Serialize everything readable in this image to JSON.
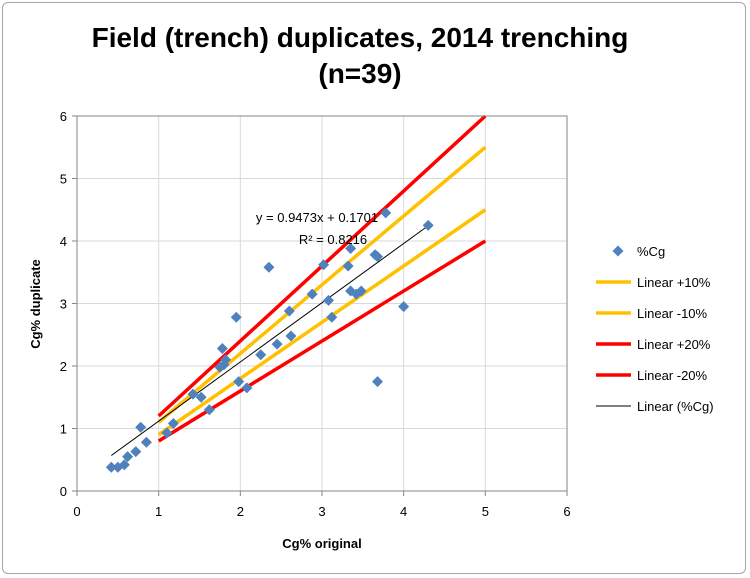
{
  "chart_data": {
    "type": "scatter",
    "title": "Field (trench) duplicates, 2014 trenching",
    "subtitle": "(n=39)",
    "xlabel": "Cg% original",
    "ylabel": "Cg% duplicate",
    "xlim": [
      0,
      6
    ],
    "ylim": [
      0,
      6
    ],
    "xticks": [
      "0",
      "1",
      "2",
      "3",
      "4",
      "5",
      "6"
    ],
    "yticks": [
      "0",
      "1",
      "2",
      "3",
      "4",
      "5",
      "6"
    ],
    "grid": true,
    "legend_position": "right",
    "series": [
      {
        "name": "%Cg",
        "color": "#4f81bd",
        "marker": "diamond",
        "points": [
          [
            0.42,
            0.38
          ],
          [
            0.5,
            0.38
          ],
          [
            0.58,
            0.42
          ],
          [
            0.62,
            0.55
          ],
          [
            0.72,
            0.63
          ],
          [
            0.78,
            1.02
          ],
          [
            0.85,
            0.78
          ],
          [
            1.1,
            0.93
          ],
          [
            1.18,
            1.08
          ],
          [
            1.42,
            1.55
          ],
          [
            1.52,
            1.5
          ],
          [
            1.62,
            1.3
          ],
          [
            1.75,
            1.98
          ],
          [
            1.78,
            2.28
          ],
          [
            1.82,
            2.1
          ],
          [
            1.8,
            2.02
          ],
          [
            1.95,
            2.78
          ],
          [
            1.98,
            1.75
          ],
          [
            2.08,
            1.65
          ],
          [
            2.25,
            2.18
          ],
          [
            2.35,
            3.58
          ],
          [
            2.45,
            2.35
          ],
          [
            2.6,
            2.88
          ],
          [
            2.62,
            2.48
          ],
          [
            2.88,
            3.15
          ],
          [
            3.02,
            3.62
          ],
          [
            3.08,
            3.05
          ],
          [
            3.12,
            2.78
          ],
          [
            3.32,
            3.6
          ],
          [
            3.35,
            3.2
          ],
          [
            3.35,
            3.88
          ],
          [
            3.42,
            3.15
          ],
          [
            3.48,
            3.2
          ],
          [
            3.65,
            3.78
          ],
          [
            3.68,
            3.75
          ],
          [
            3.68,
            1.75
          ],
          [
            3.78,
            4.45
          ],
          [
            4.0,
            2.95
          ],
          [
            4.3,
            4.25
          ]
        ]
      },
      {
        "name": "Linear +10%",
        "color": "#ffc000",
        "type": "line",
        "x": [
          1,
          5
        ],
        "y": [
          1.1,
          5.5
        ]
      },
      {
        "name": "Linear -10%",
        "color": "#ffc000",
        "type": "line",
        "x": [
          1,
          5
        ],
        "y": [
          0.9,
          4.5
        ]
      },
      {
        "name": "Linear +20%",
        "color": "#ff0000",
        "type": "line",
        "x": [
          1,
          5
        ],
        "y": [
          1.2,
          6.0
        ]
      },
      {
        "name": "Linear -20%",
        "color": "#ff0000",
        "type": "line",
        "x": [
          1,
          5
        ],
        "y": [
          0.8,
          4.0
        ]
      },
      {
        "name": "Linear (%Cg)",
        "color": "#000000",
        "type": "line",
        "x": [
          0.42,
          4.3
        ],
        "y": [
          0.568,
          4.244
        ]
      }
    ],
    "annotations": [
      "y = 0.9473x + 0.1701",
      "R² = 0.8216"
    ]
  }
}
